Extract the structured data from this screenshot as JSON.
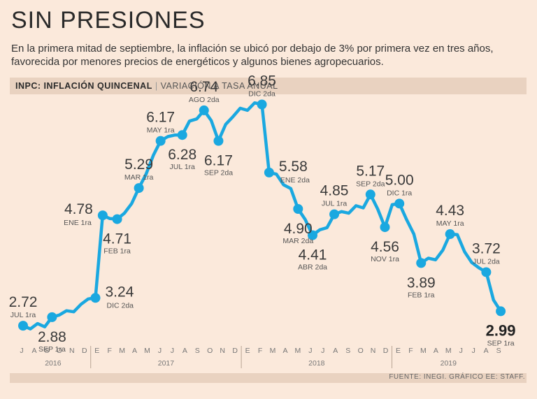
{
  "title": "SIN PRESIONES",
  "subtitle": "En la primera mitad de septiembre, la inflación se ubicó por debajo de 3% por primera vez en tres años, favorecida por menores precios de energéticos y algunos bienes agropecuarios.",
  "header_bar": {
    "bold": "INPC: INFLACIÓN QUINCENAL",
    "separator": "|",
    "light": "VARIACIÓN A TASA ANUAL"
  },
  "footer": "FUENTE: INEGI. GRÁFICO EE: STAFF.",
  "colors": {
    "background": "#fbe9db",
    "line": "#1aa8e0",
    "band": "#e9d2c0"
  },
  "chart_data": {
    "type": "line",
    "series": [
      {
        "name": "INPC inflación quincenal, variación anual (%)",
        "values": [
          2.72,
          2.66,
          2.76,
          2.7,
          2.88,
          2.92,
          3.0,
          2.98,
          3.12,
          3.22,
          3.24,
          4.78,
          4.72,
          4.71,
          4.82,
          5.0,
          5.29,
          5.55,
          5.9,
          6.17,
          6.25,
          6.28,
          6.28,
          6.54,
          6.58,
          6.74,
          6.55,
          6.17,
          6.48,
          6.62,
          6.78,
          6.74,
          6.88,
          6.85,
          5.58,
          5.55,
          5.35,
          5.28,
          4.9,
          4.7,
          4.41,
          4.51,
          4.55,
          4.8,
          4.85,
          4.82,
          4.96,
          4.92,
          5.17,
          4.9,
          4.56,
          4.98,
          5.0,
          4.7,
          4.43,
          3.89,
          3.98,
          3.95,
          4.13,
          4.43,
          4.42,
          4.1,
          3.9,
          3.8,
          3.72,
          3.2,
          2.99
        ]
      }
    ],
    "point_labels": [
      {
        "index": 0,
        "value": "2.72",
        "period": "JUL 1ra",
        "pos": "above"
      },
      {
        "index": 4,
        "value": "2.88",
        "period": "SEP 1ra",
        "pos": "below"
      },
      {
        "index": 10,
        "value": "3.24",
        "period": "DIC 2da",
        "pos": "right"
      },
      {
        "index": 11,
        "value": "4.78",
        "period": "ENE 1ra",
        "pos": "left"
      },
      {
        "index": 13,
        "value": "4.71",
        "period": "FEB 1ra",
        "pos": "below"
      },
      {
        "index": 16,
        "value": "5.29",
        "period": "MAR 1ra",
        "pos": "above"
      },
      {
        "index": 19,
        "value": "6.17",
        "period": "MAY 1ra",
        "pos": "above"
      },
      {
        "index": 22,
        "value": "6.28",
        "period": "JUL 1ra",
        "pos": "below"
      },
      {
        "index": 25,
        "value": "6.74",
        "period": "AGO 2da",
        "pos": "above"
      },
      {
        "index": 27,
        "value": "6.17",
        "period": "SEP 2da",
        "pos": "below"
      },
      {
        "index": 33,
        "value": "6.85",
        "period": "DIC 2da",
        "pos": "above"
      },
      {
        "index": 34,
        "value": "5.58",
        "period": "ENE 2da",
        "pos": "right"
      },
      {
        "index": 38,
        "value": "4.90",
        "period": "MAR 2da",
        "pos": "below"
      },
      {
        "index": 40,
        "value": "4.41",
        "period": "ABR 2da",
        "pos": "below"
      },
      {
        "index": 43,
        "value": "4.85",
        "period": "JUL 1ra",
        "pos": "above"
      },
      {
        "index": 48,
        "value": "5.17",
        "period": "SEP 2da",
        "pos": "above"
      },
      {
        "index": 50,
        "value": "4.56",
        "period": "NOV 1ra",
        "pos": "below"
      },
      {
        "index": 52,
        "value": "5.00",
        "period": "DIC 1ra",
        "pos": "above"
      },
      {
        "index": 55,
        "value": "3.89",
        "period": "FEB 1ra",
        "pos": "below"
      },
      {
        "index": 59,
        "value": "4.43",
        "period": "MAY 1ra",
        "pos": "above"
      },
      {
        "index": 64,
        "value": "3.72",
        "period": "JUL 2da",
        "pos": "above"
      },
      {
        "index": 66,
        "value": "2.99",
        "period": "SEP 1ra",
        "pos": "below",
        "emphasis": true
      }
    ],
    "x_axis": {
      "months": [
        {
          "label": "J",
          "year_group": 0
        },
        {
          "label": "A",
          "year_group": 0
        },
        {
          "label": "S",
          "year_group": 0
        },
        {
          "label": "O",
          "year_group": 0
        },
        {
          "label": "N",
          "year_group": 0
        },
        {
          "label": "D",
          "year_group": 0
        },
        {
          "label": "E",
          "year_group": 1
        },
        {
          "label": "F",
          "year_group": 1
        },
        {
          "label": "M",
          "year_group": 1
        },
        {
          "label": "A",
          "year_group": 1
        },
        {
          "label": "M",
          "year_group": 1
        },
        {
          "label": "J",
          "year_group": 1
        },
        {
          "label": "J",
          "year_group": 1
        },
        {
          "label": "A",
          "year_group": 1
        },
        {
          "label": "S",
          "year_group": 1
        },
        {
          "label": "O",
          "year_group": 1
        },
        {
          "label": "N",
          "year_group": 1
        },
        {
          "label": "D",
          "year_group": 1
        },
        {
          "label": "E",
          "year_group": 2
        },
        {
          "label": "F",
          "year_group": 2
        },
        {
          "label": "M",
          "year_group": 2
        },
        {
          "label": "A",
          "year_group": 2
        },
        {
          "label": "M",
          "year_group": 2
        },
        {
          "label": "J",
          "year_group": 2
        },
        {
          "label": "J",
          "year_group": 2
        },
        {
          "label": "A",
          "year_group": 2
        },
        {
          "label": "S",
          "year_group": 2
        },
        {
          "label": "O",
          "year_group": 2
        },
        {
          "label": "N",
          "year_group": 2
        },
        {
          "label": "D",
          "year_group": 2
        },
        {
          "label": "E",
          "year_group": 3
        },
        {
          "label": "F",
          "year_group": 3
        },
        {
          "label": "M",
          "year_group": 3
        },
        {
          "label": "A",
          "year_group": 3
        },
        {
          "label": "M",
          "year_group": 3
        },
        {
          "label": "J",
          "year_group": 3
        },
        {
          "label": "J",
          "year_group": 3
        },
        {
          "label": "A",
          "year_group": 3
        },
        {
          "label": "S",
          "year_group": 3
        }
      ],
      "years": [
        "2016",
        "2017",
        "2018",
        "2019"
      ]
    },
    "y_range": [
      2.5,
      7.0
    ]
  }
}
